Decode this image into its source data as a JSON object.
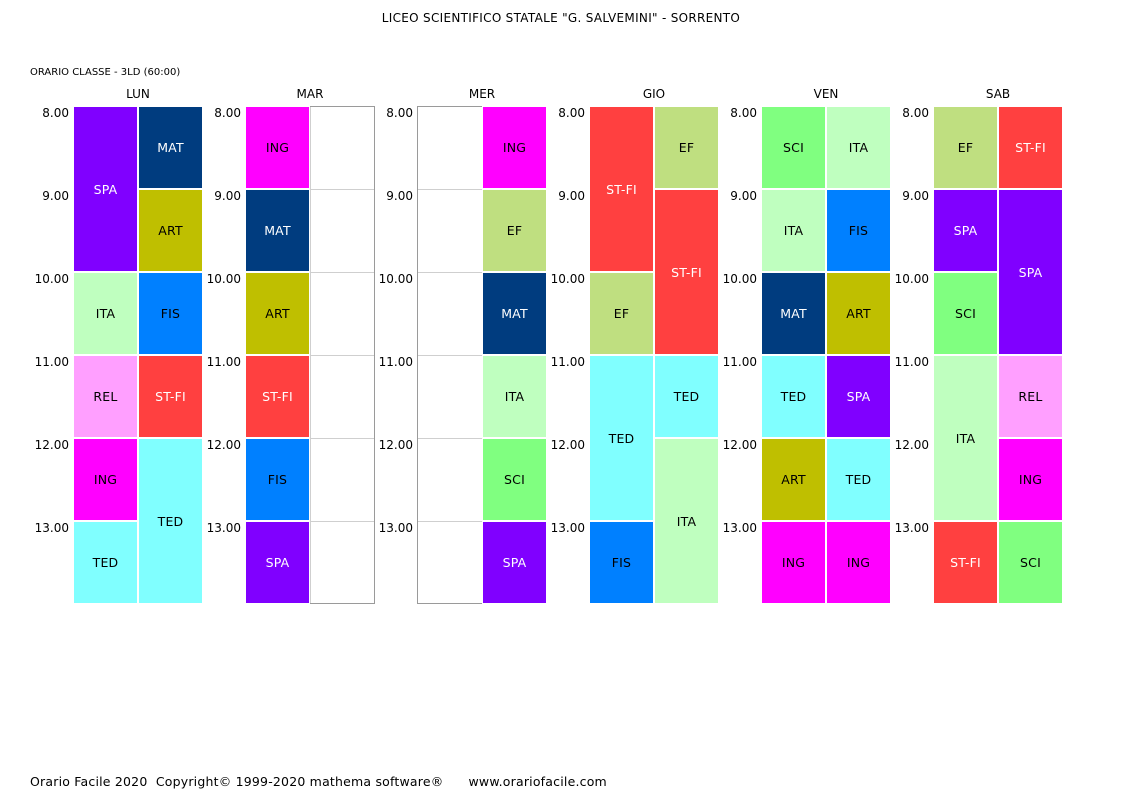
{
  "header": {
    "title": "LICEO SCIENTIFICO STATALE \"G. SALVEMINI\" - SORRENTO",
    "class_label": "ORARIO CLASSE  -  3LD  (60:00)"
  },
  "times": [
    "8.00",
    "9.00",
    "10.00",
    "11.00",
    "12.00",
    "13.00"
  ],
  "colors": {
    "SPA": "#8000FF",
    "MAT": "#003C7F",
    "ART": "#BFBF00",
    "ITA": "#BFFFBF",
    "FIS": "#0080FF",
    "REL": "#FF9FFF",
    "ST-FI": "#FF4040",
    "ING": "#FF00FF",
    "TED": "#80FFFF",
    "EF": "#BFDF80",
    "SCI": "#80FF80"
  },
  "text_colors": {
    "SPA": "#FFFFFF",
    "MAT": "#FFFFFF",
    "ART": "#000000",
    "ITA": "#000000",
    "FIS": "#000000",
    "REL": "#000000",
    "ST-FI": "#FFFFFF",
    "ING": "#000000",
    "TED": "#000000",
    "EF": "#000000",
    "SCI": "#000000"
  },
  "days": [
    {
      "name": "LUN",
      "slots": [
        {
          "col": 0,
          "start": 0,
          "span": 2,
          "subject": "SPA"
        },
        {
          "col": 1,
          "start": 0,
          "span": 1,
          "subject": "MAT"
        },
        {
          "col": 1,
          "start": 1,
          "span": 1,
          "subject": "ART"
        },
        {
          "col": 0,
          "start": 2,
          "span": 1,
          "subject": "ITA"
        },
        {
          "col": 1,
          "start": 2,
          "span": 1,
          "subject": "FIS"
        },
        {
          "col": 0,
          "start": 3,
          "span": 1,
          "subject": "REL"
        },
        {
          "col": 1,
          "start": 3,
          "span": 1,
          "subject": "ST-FI"
        },
        {
          "col": 0,
          "start": 4,
          "span": 1,
          "subject": "ING"
        },
        {
          "col": 1,
          "start": 4,
          "span": 2,
          "subject": "TED"
        },
        {
          "col": 0,
          "start": 5,
          "span": 1,
          "subject": "TED"
        }
      ]
    },
    {
      "name": "MAR",
      "slots": [
        {
          "col": 0,
          "start": 0,
          "span": 1,
          "subject": "ING"
        },
        {
          "col": 0,
          "start": 1,
          "span": 1,
          "subject": "MAT"
        },
        {
          "col": 0,
          "start": 2,
          "span": 1,
          "subject": "ART"
        },
        {
          "col": 0,
          "start": 3,
          "span": 1,
          "subject": "ST-FI"
        },
        {
          "col": 0,
          "start": 4,
          "span": 1,
          "subject": "FIS"
        },
        {
          "col": 0,
          "start": 5,
          "span": 1,
          "subject": "SPA"
        }
      ]
    },
    {
      "name": "MER",
      "slots": [
        {
          "col": 1,
          "start": 0,
          "span": 1,
          "subject": "ING"
        },
        {
          "col": 1,
          "start": 1,
          "span": 1,
          "subject": "EF"
        },
        {
          "col": 1,
          "start": 2,
          "span": 1,
          "subject": "MAT"
        },
        {
          "col": 1,
          "start": 3,
          "span": 1,
          "subject": "ITA"
        },
        {
          "col": 1,
          "start": 4,
          "span": 1,
          "subject": "SCI"
        },
        {
          "col": 1,
          "start": 5,
          "span": 1,
          "subject": "SPA"
        }
      ]
    },
    {
      "name": "GIO",
      "slots": [
        {
          "col": 0,
          "start": 0,
          "span": 2,
          "subject": "ST-FI"
        },
        {
          "col": 1,
          "start": 0,
          "span": 1,
          "subject": "EF"
        },
        {
          "col": 1,
          "start": 1,
          "span": 2,
          "subject": "ST-FI"
        },
        {
          "col": 0,
          "start": 2,
          "span": 1,
          "subject": "EF"
        },
        {
          "col": 0,
          "start": 3,
          "span": 2,
          "subject": "TED"
        },
        {
          "col": 1,
          "start": 3,
          "span": 1,
          "subject": "TED"
        },
        {
          "col": 1,
          "start": 4,
          "span": 2,
          "subject": "ITA"
        },
        {
          "col": 0,
          "start": 5,
          "span": 1,
          "subject": "FIS"
        }
      ]
    },
    {
      "name": "VEN",
      "slots": [
        {
          "col": 0,
          "start": 0,
          "span": 1,
          "subject": "SCI"
        },
        {
          "col": 1,
          "start": 0,
          "span": 1,
          "subject": "ITA"
        },
        {
          "col": 0,
          "start": 1,
          "span": 1,
          "subject": "ITA"
        },
        {
          "col": 1,
          "start": 1,
          "span": 1,
          "subject": "FIS"
        },
        {
          "col": 0,
          "start": 2,
          "span": 1,
          "subject": "MAT"
        },
        {
          "col": 1,
          "start": 2,
          "span": 1,
          "subject": "ART"
        },
        {
          "col": 0,
          "start": 3,
          "span": 1,
          "subject": "TED"
        },
        {
          "col": 1,
          "start": 3,
          "span": 1,
          "subject": "SPA"
        },
        {
          "col": 0,
          "start": 4,
          "span": 1,
          "subject": "ART"
        },
        {
          "col": 1,
          "start": 4,
          "span": 1,
          "subject": "TED"
        },
        {
          "col": 0,
          "start": 5,
          "span": 1,
          "subject": "ING"
        },
        {
          "col": 1,
          "start": 5,
          "span": 1,
          "subject": "ING"
        }
      ]
    },
    {
      "name": "SAB",
      "slots": [
        {
          "col": 0,
          "start": 0,
          "span": 1,
          "subject": "EF"
        },
        {
          "col": 1,
          "start": 0,
          "span": 1,
          "subject": "ST-FI"
        },
        {
          "col": 0,
          "start": 1,
          "span": 1,
          "subject": "SPA"
        },
        {
          "col": 1,
          "start": 1,
          "span": 2,
          "subject": "SPA"
        },
        {
          "col": 0,
          "start": 2,
          "span": 1,
          "subject": "SCI"
        },
        {
          "col": 0,
          "start": 3,
          "span": 2,
          "subject": "ITA"
        },
        {
          "col": 1,
          "start": 3,
          "span": 1,
          "subject": "REL"
        },
        {
          "col": 1,
          "start": 4,
          "span": 1,
          "subject": "ING"
        },
        {
          "col": 0,
          "start": 5,
          "span": 1,
          "subject": "ST-FI"
        },
        {
          "col": 1,
          "start": 5,
          "span": 1,
          "subject": "SCI"
        }
      ]
    }
  ],
  "footer": {
    "product": "Orario Facile 2020",
    "copyright": "Copyright© 1999-2020 mathema software®",
    "website": "www.orariofacile.com"
  }
}
